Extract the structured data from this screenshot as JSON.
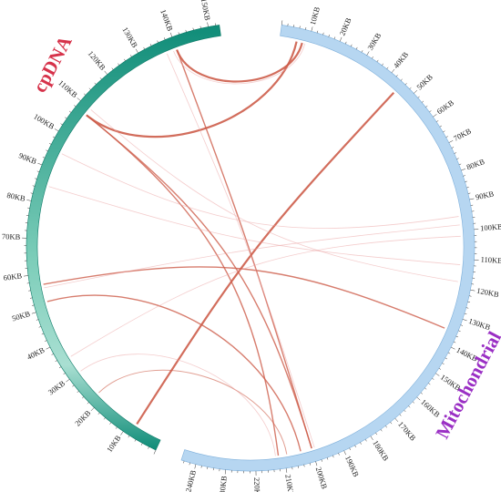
{
  "labels": {
    "cp_title": "cpDNA",
    "mt_title": "Mitochondrial"
  },
  "colors": {
    "cp_dark": "#0f8c78",
    "cp_light": "#a9dfd2",
    "mt_fill": "#b6d6f1",
    "mt_stroke": "#7fb0db",
    "link": "#cd5d4a",
    "link_faint": "#eba4a4",
    "cp_title": "#d6324a",
    "mt_title": "#9a2fc4"
  },
  "segments": {
    "cp": {
      "name": "cpDNA",
      "length_kb": 153,
      "tick_labels": [
        "10KB",
        "20KB",
        "30KB",
        "40KB",
        "50KB",
        "60KB",
        "70KB",
        "80KB",
        "90KB",
        "100KB",
        "110KB",
        "120KB",
        "130KB",
        "140KB",
        "150KB"
      ]
    },
    "mt": {
      "name": "Mitochondrial",
      "length_kb": 245,
      "tick_labels": [
        "10KB",
        "20KB",
        "30KB",
        "40KB",
        "50KB",
        "60KB",
        "70KB",
        "80KB",
        "90KB",
        "100KB",
        "110KB",
        "120KB",
        "130KB",
        "140KB",
        "150KB",
        "160KB",
        "170KB",
        "180KB",
        "190KB",
        "200KB",
        "210KB",
        "220KB",
        "230KB",
        "240KB"
      ]
    }
  },
  "links": [
    {
      "cp_kb": 140,
      "mt_kb": 8,
      "weight": "strong"
    },
    {
      "cp_kb": 108,
      "mt_kb": 6,
      "weight": "strong"
    },
    {
      "cp_kb": 8,
      "mt_kb": 45,
      "weight": "strong"
    },
    {
      "cp_kb": 140,
      "mt_kb": 200,
      "weight": "medium"
    },
    {
      "cp_kb": 108,
      "mt_kb": 212,
      "weight": "medium"
    },
    {
      "cp_kb": 57,
      "mt_kb": 135,
      "weight": "medium"
    },
    {
      "cp_kb": 52,
      "mt_kb": 204,
      "weight": "medium"
    },
    {
      "cp_kb": 108,
      "mt_kb": 200,
      "weight": "medium"
    },
    {
      "cp_kb": 22,
      "mt_kb": 209,
      "weight": "light"
    },
    {
      "cp_kb": 56,
      "mt_kb": 98,
      "weight": "faint"
    },
    {
      "cp_kb": 85,
      "mt_kb": 112,
      "weight": "faint"
    },
    {
      "cp_kb": 110,
      "mt_kb": 118,
      "weight": "faint"
    },
    {
      "cp_kb": 139,
      "mt_kb": 9,
      "weight": "faint"
    },
    {
      "cp_kb": 137,
      "mt_kb": 199,
      "weight": "faint"
    },
    {
      "cp_kb": 35,
      "mt_kb": 102,
      "weight": "faint"
    },
    {
      "cp_kb": 30,
      "mt_kb": 213,
      "weight": "faint"
    },
    {
      "cp_kb": 95,
      "mt_kb": 95,
      "weight": "faint"
    }
  ]
}
